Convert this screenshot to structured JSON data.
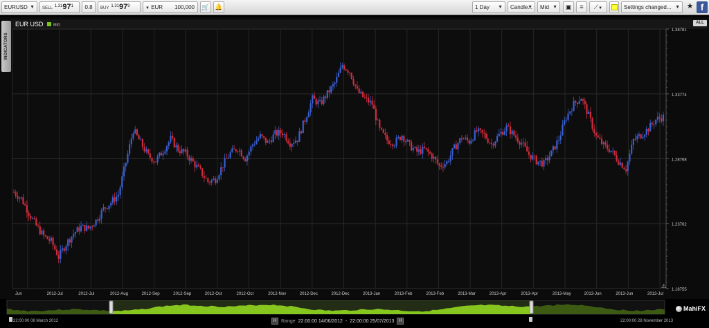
{
  "toolbar": {
    "symbol": "EURUSD",
    "sell_label": "SELL",
    "sell_small": "1.31",
    "sell_big": "97",
    "sell_sup": "1",
    "spread": "0.8",
    "buy_label": "BUY",
    "buy_small": "1.31",
    "buy_big": "97",
    "buy_sup": "9",
    "currency": "EUR",
    "amount": "100,000",
    "timeframe": "1 Day",
    "chart_type": "Candle...",
    "price_type": "Mid",
    "settings": "Settings changed...",
    "facebook": "f"
  },
  "chart": {
    "title": "EUR USD",
    "badge": "MID",
    "indicators_tab": "INDICATORS",
    "all_button": "ALL",
    "bull_color": "#3a5fd0",
    "bear_color": "#d02c3c",
    "grid_color": "#2e2e2e",
    "axis_text_color": "#cfcfcf"
  },
  "chart_data": {
    "type": "candlestick",
    "title": "EUR USD",
    "y_ticks": [
      "1.38781",
      "1.33774",
      "1.28768",
      "1.23762",
      "1.18755"
    ],
    "ylim": [
      1.18755,
      1.38781
    ],
    "x_ticks": [
      "Jun",
      "2012-Jul",
      "2012-Jul",
      "2012-Aug",
      "2012-Sep",
      "2012-Sep",
      "2012-Oct",
      "2012-Oct",
      "2012-Nov",
      "2012-Dec",
      "2012-Dec",
      "2013-Jan",
      "2013-Feb",
      "2013-Feb",
      "2013-Mar",
      "2013-Apr",
      "2013-Apr",
      "2013-May",
      "2013-Jun",
      "2013-Jun",
      "2013-Jul"
    ],
    "close_path": [
      [
        0,
        1.262
      ],
      [
        4,
        1.257
      ],
      [
        8,
        1.246
      ],
      [
        12,
        1.236
      ],
      [
        16,
        1.228
      ],
      [
        20,
        1.224
      ],
      [
        24,
        1.212
      ],
      [
        28,
        1.222
      ],
      [
        32,
        1.23
      ],
      [
        36,
        1.235
      ],
      [
        40,
        1.234
      ],
      [
        44,
        1.24
      ],
      [
        48,
        1.249
      ],
      [
        52,
        1.254
      ],
      [
        56,
        1.26
      ],
      [
        60,
        1.285
      ],
      [
        64,
        1.31
      ],
      [
        68,
        1.3
      ],
      [
        72,
        1.29
      ],
      [
        76,
        1.286
      ],
      [
        80,
        1.294
      ],
      [
        84,
        1.303
      ],
      [
        88,
        1.295
      ],
      [
        92,
        1.292
      ],
      [
        96,
        1.285
      ],
      [
        100,
        1.278
      ],
      [
        104,
        1.27
      ],
      [
        108,
        1.272
      ],
      [
        112,
        1.283
      ],
      [
        116,
        1.292
      ],
      [
        120,
        1.296
      ],
      [
        124,
        1.288
      ],
      [
        128,
        1.299
      ],
      [
        132,
        1.305
      ],
      [
        136,
        1.3
      ],
      [
        140,
        1.307
      ],
      [
        144,
        1.308
      ],
      [
        148,
        1.3
      ],
      [
        152,
        1.303
      ],
      [
        156,
        1.318
      ],
      [
        160,
        1.334
      ],
      [
        164,
        1.33
      ],
      [
        168,
        1.338
      ],
      [
        172,
        1.346
      ],
      [
        176,
        1.36
      ],
      [
        180,
        1.355
      ],
      [
        184,
        1.34
      ],
      [
        188,
        1.334
      ],
      [
        192,
        1.33
      ],
      [
        196,
        1.31
      ],
      [
        200,
        1.302
      ],
      [
        204,
        1.3
      ],
      [
        208,
        1.306
      ],
      [
        212,
        1.298
      ],
      [
        216,
        1.293
      ],
      [
        220,
        1.295
      ],
      [
        224,
        1.29
      ],
      [
        228,
        1.282
      ],
      [
        232,
        1.285
      ],
      [
        236,
        1.296
      ],
      [
        240,
        1.304
      ],
      [
        244,
        1.301
      ],
      [
        248,
        1.309
      ],
      [
        252,
        1.306
      ],
      [
        256,
        1.299
      ],
      [
        260,
        1.306
      ],
      [
        264,
        1.312
      ],
      [
        268,
        1.306
      ],
      [
        272,
        1.3
      ],
      [
        276,
        1.291
      ],
      [
        280,
        1.286
      ],
      [
        284,
        1.284
      ],
      [
        288,
        1.292
      ],
      [
        292,
        1.303
      ],
      [
        296,
        1.32
      ],
      [
        300,
        1.33
      ],
      [
        304,
        1.335
      ],
      [
        308,
        1.321
      ],
      [
        312,
        1.305
      ],
      [
        316,
        1.298
      ],
      [
        320,
        1.294
      ],
      [
        324,
        1.286
      ],
      [
        328,
        1.28
      ],
      [
        332,
        1.302
      ],
      [
        336,
        1.306
      ],
      [
        340,
        1.311
      ],
      [
        344,
        1.318
      ],
      [
        348,
        1.32
      ]
    ],
    "navigator": {
      "start": "22:00:00 08 March 2012",
      "end": "22:00:00 28 November 2013",
      "range_label": "Range",
      "range_from": "22:00:00 14/06/2012",
      "range_sep": "-",
      "range_to": "22:00:00 25/07/2013"
    }
  },
  "brand": "MahiFX"
}
